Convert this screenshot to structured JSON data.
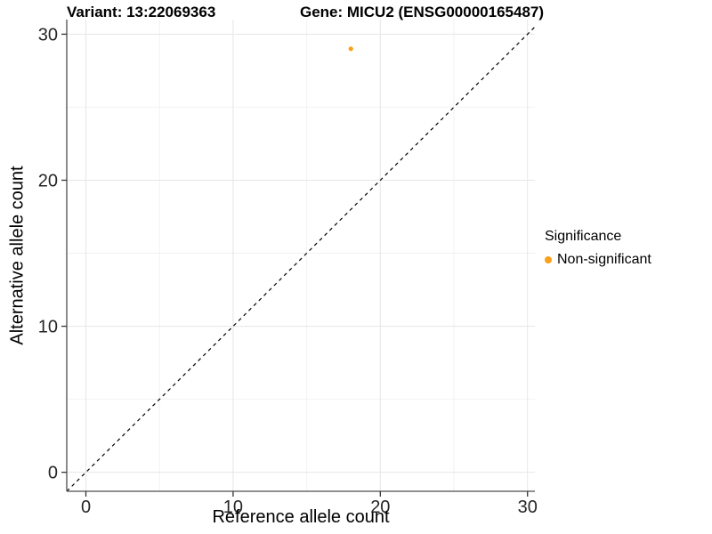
{
  "chart_data": {
    "type": "scatter",
    "titles": {
      "left": "Variant: 13:22069363",
      "right": "Gene: MICU2 (ENSG00000165487)"
    },
    "xlabel": "Reference allele count",
    "ylabel": "Alternative allele count",
    "xlim": [
      -1.3,
      30.5
    ],
    "ylim": [
      -1.3,
      31.0
    ],
    "xticks": [
      0,
      10,
      20,
      30
    ],
    "yticks": [
      0,
      10,
      20,
      30
    ],
    "xminor": [
      5,
      15,
      25
    ],
    "yminor": [
      5,
      15,
      25
    ],
    "grid": true,
    "identity_line": {
      "slope": 1,
      "intercept": 0,
      "style": "dashed",
      "color": "#000000"
    },
    "series": [
      {
        "name": "Non-significant",
        "color": "#FAA019",
        "points": [
          {
            "x": 18,
            "y": 29
          }
        ]
      }
    ],
    "legend": {
      "title": "Significance",
      "position": "right",
      "entries": [
        {
          "label": "Non-significant",
          "color": "#FAA019"
        }
      ]
    },
    "colors": {
      "background": "#FFFFFF",
      "grid_major": "#E6E6E6",
      "grid_minor": "#F2F2F2",
      "axis_line": "#4D4D4D",
      "tick_mark": "#333333",
      "tick_label": "#262626",
      "text": "#000000"
    }
  }
}
